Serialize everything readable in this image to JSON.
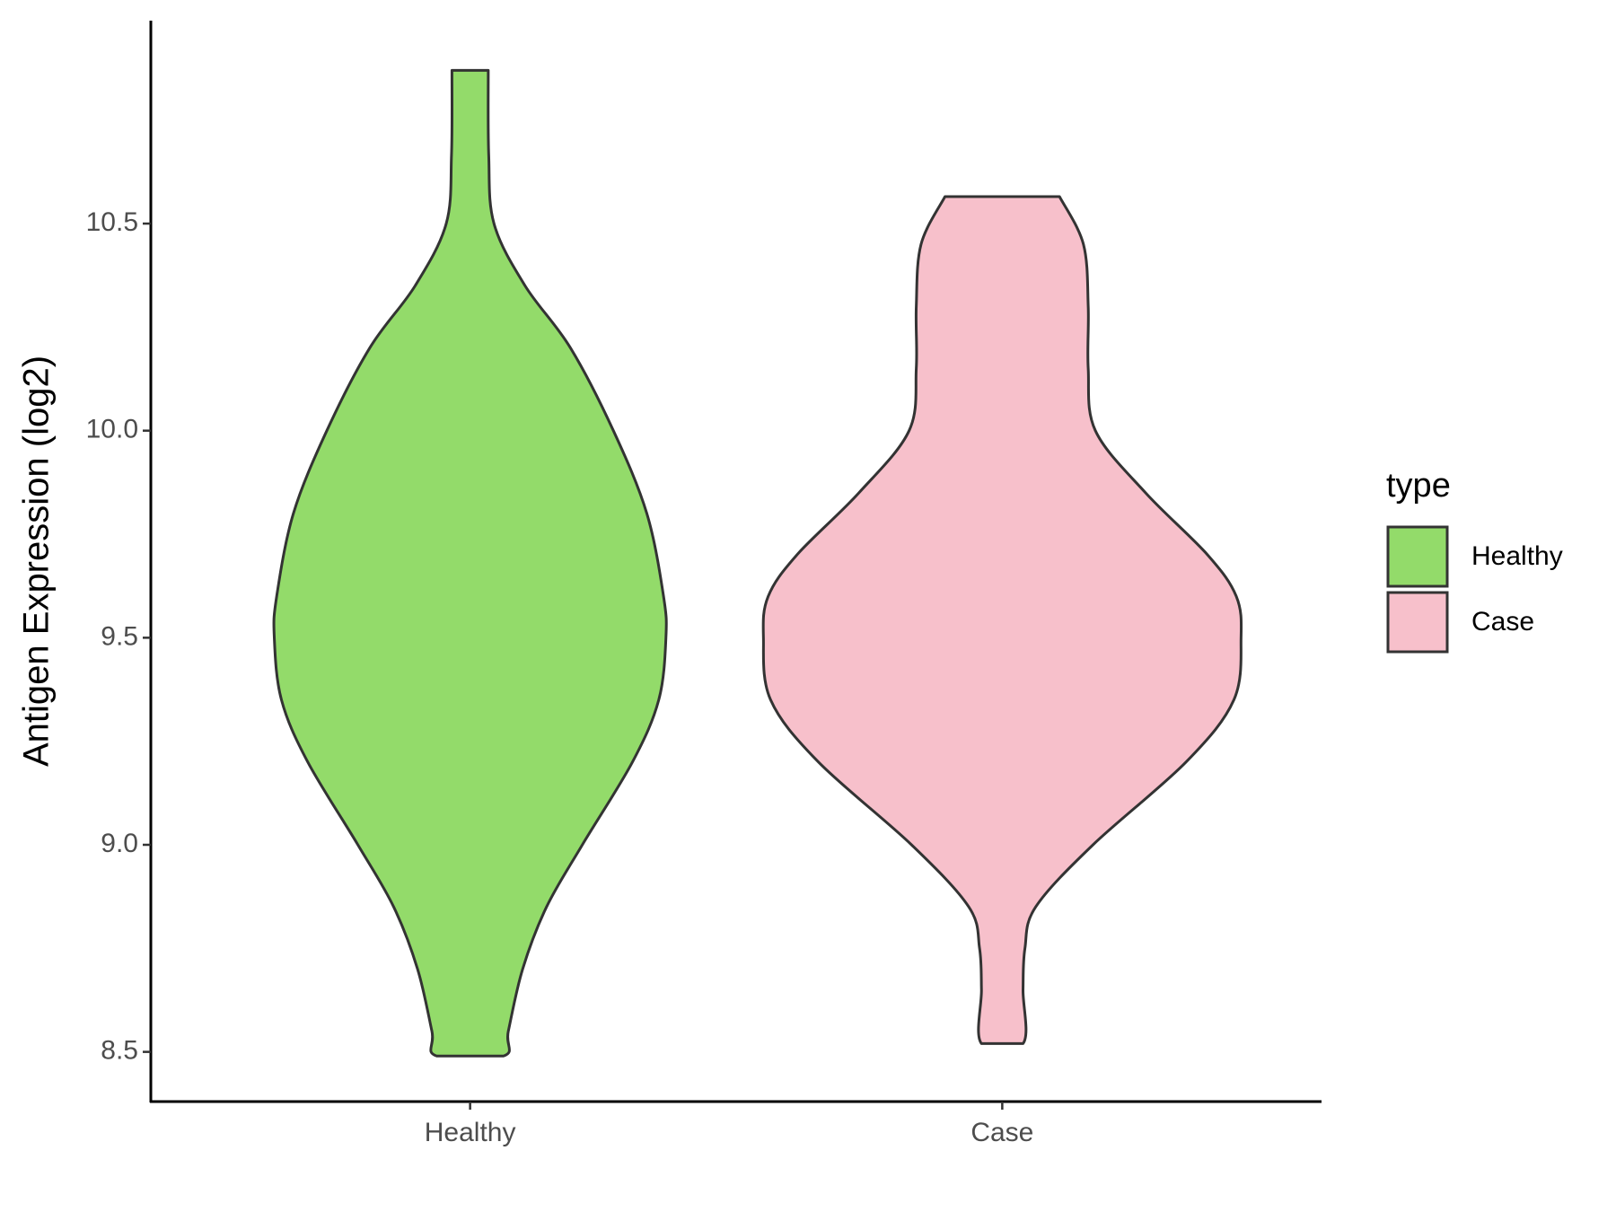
{
  "chart_data": {
    "type": "violin",
    "y_label": "Antigen Expression (log2)",
    "legend_title": "type",
    "categories": [
      "Healthy",
      "Case"
    ],
    "series": [
      {
        "name": "Healthy",
        "color": "#93db6a",
        "y": [
          10.87,
          10.665,
          10.5,
          10.35,
          10.2,
          10.0,
          9.8,
          9.6,
          9.5,
          9.35,
          9.2,
          9.0,
          8.85,
          8.7,
          8.55,
          8.49
        ],
        "width": [
          0.076,
          0.078,
          0.1,
          0.23,
          0.42,
          0.6,
          0.74,
          0.81,
          0.82,
          0.79,
          0.68,
          0.47,
          0.32,
          0.22,
          0.16,
          0.14
        ]
      },
      {
        "name": "Case",
        "color": "#f7c0cb",
        "y": [
          10.565,
          10.45,
          10.3,
          10.15,
          10.0,
          9.85,
          9.7,
          9.6,
          9.5,
          9.35,
          9.2,
          9.0,
          8.85,
          8.75,
          8.65,
          8.52
        ],
        "width": [
          0.24,
          0.34,
          0.36,
          0.36,
          0.39,
          0.6,
          0.86,
          0.98,
          1.0,
          0.97,
          0.77,
          0.38,
          0.14,
          0.095,
          0.087,
          0.087
        ]
      }
    ],
    "ylim": [
      8.38,
      10.99
    ],
    "yticks": [
      {
        "value": 8.5,
        "label": "8.5"
      },
      {
        "value": 9,
        "label": "9.0"
      },
      {
        "value": 9.5,
        "label": "9.5"
      },
      {
        "value": 10,
        "label": "10.0"
      },
      {
        "value": 10.5,
        "label": "10.5"
      }
    ],
    "grid": false
  }
}
